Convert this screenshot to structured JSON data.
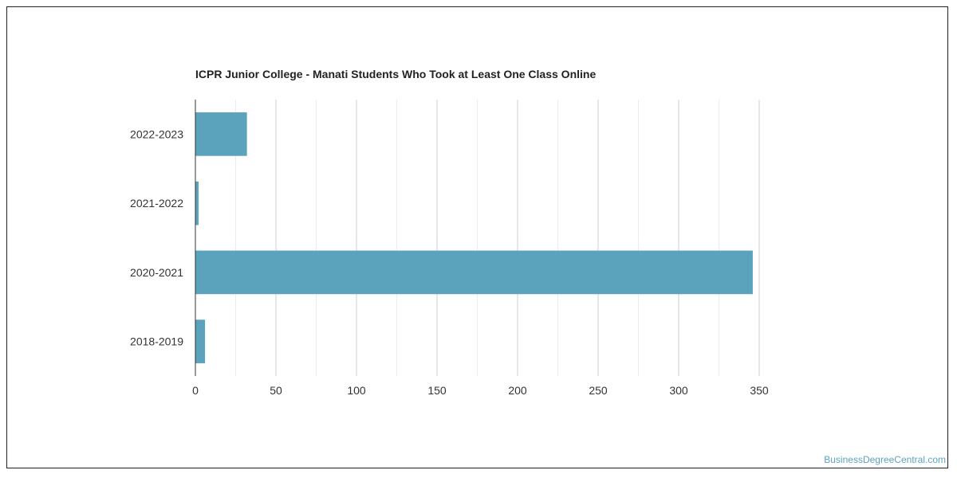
{
  "chart_data": {
    "type": "bar",
    "orientation": "horizontal",
    "title": "ICPR Junior College - Manati Students Who Took at Least One Class Online",
    "categories": [
      "2022-2023",
      "2021-2022",
      "2020-2021",
      "2018-2019"
    ],
    "values": [
      32,
      2,
      346,
      6
    ],
    "xlabel": "",
    "ylabel": "",
    "xlim": [
      0,
      350
    ],
    "xticks": [
      "0",
      "50",
      "100",
      "150",
      "200",
      "250",
      "300",
      "350"
    ],
    "grid": true,
    "legend": "none",
    "bar_color": "#5ba3bd"
  },
  "watermark": "BusinessDegreeCentral.com"
}
